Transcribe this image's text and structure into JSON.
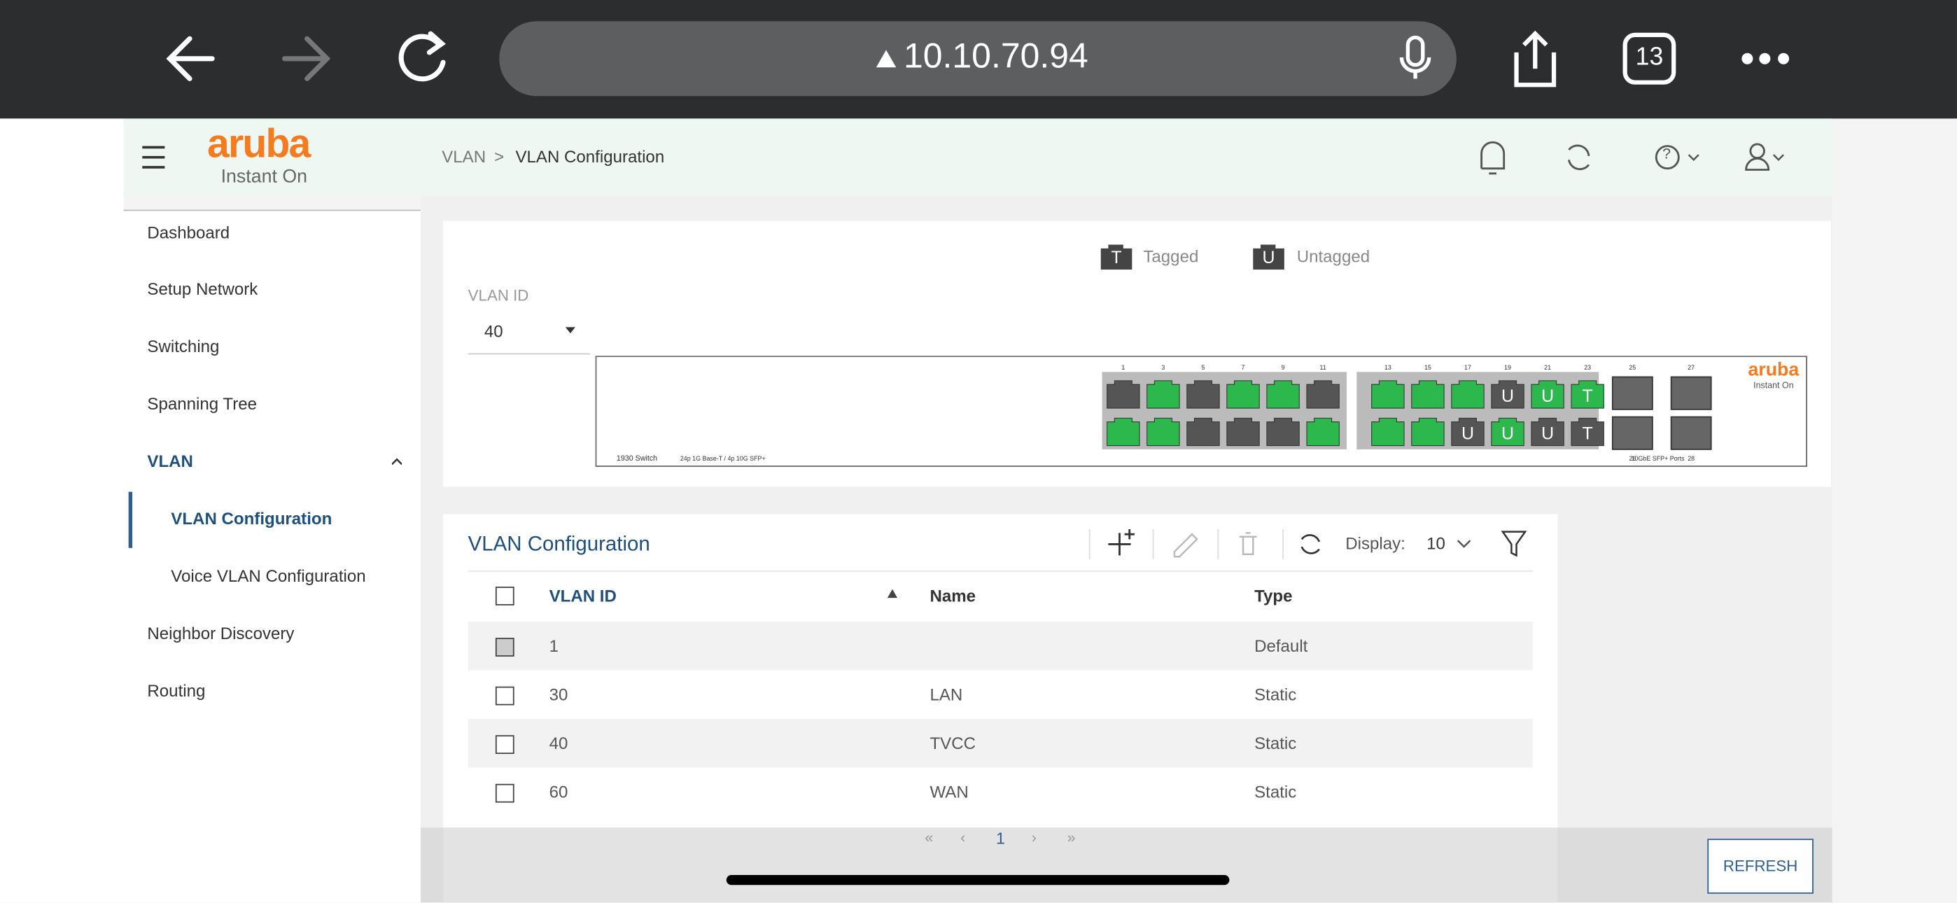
{
  "browser": {
    "url": "10.10.70.94",
    "tab_count": "13"
  },
  "header": {
    "logo": "aruba",
    "logo_sub": "Instant On",
    "breadcrumb": [
      "VLAN",
      ">",
      "VLAN Configuration"
    ]
  },
  "sidebar": {
    "items": [
      {
        "label": "Dashboard",
        "level": 0
      },
      {
        "label": "Setup Network",
        "level": 0
      },
      {
        "label": "Switching",
        "level": 0
      },
      {
        "label": "Spanning Tree",
        "level": 0
      },
      {
        "label": "VLAN",
        "level": 0,
        "expanded": true
      },
      {
        "label": "VLAN Configuration",
        "level": 1,
        "active": true
      },
      {
        "label": "Voice VLAN Configuration",
        "level": 1
      },
      {
        "label": "Neighbor Discovery",
        "level": 0
      },
      {
        "label": "Routing",
        "level": 0
      }
    ]
  },
  "legend": [
    {
      "tag": "T",
      "label": "Tagged"
    },
    {
      "tag": "U",
      "label": "Untagged"
    }
  ],
  "vlan_select": {
    "label": "VLAN ID",
    "value": "40"
  },
  "switch": {
    "model": "1930 Switch",
    "spec": "24p 1G Base-T / 4p 10G SFP+",
    "sfp_caption": "10GbE SFP+ Ports",
    "brand": "aruba",
    "brand_sub": "Instant On",
    "top_labels": [
      "1",
      "3",
      "5",
      "7",
      "9",
      "11",
      "13",
      "15",
      "17",
      "19",
      "21",
      "23"
    ],
    "ports_top": [
      {
        "color": "#555"
      },
      {
        "color": "#2db84d"
      },
      {
        "color": "#555"
      },
      {
        "color": "#2db84d"
      },
      {
        "color": "#2db84d"
      },
      {
        "color": "#555"
      },
      {
        "color": "#2db84d"
      },
      {
        "color": "#2db84d"
      },
      {
        "color": "#2db84d"
      },
      {
        "color": "#555",
        "tag": "U"
      },
      {
        "color": "#2db84d",
        "tag": "U"
      },
      {
        "color": "#2db84d",
        "tag": "T"
      }
    ],
    "ports_bottom": [
      {
        "color": "#2db84d"
      },
      {
        "color": "#2db84d"
      },
      {
        "color": "#555"
      },
      {
        "color": "#555"
      },
      {
        "color": "#555"
      },
      {
        "color": "#2db84d"
      },
      {
        "color": "#2db84d"
      },
      {
        "color": "#2db84d"
      },
      {
        "color": "#555",
        "tag": "U"
      },
      {
        "color": "#2db84d",
        "tag": "U"
      },
      {
        "color": "#555",
        "tag": "U"
      },
      {
        "color": "#555",
        "tag": "T"
      }
    ],
    "sfp_labels": [
      "25",
      "26",
      "27",
      "28"
    ]
  },
  "table": {
    "title": "VLAN Configuration",
    "display_label": "Display:",
    "display_value": "10",
    "columns": [
      "VLAN ID",
      "Name",
      "Type"
    ],
    "rows": [
      [
        "1",
        "",
        "Default"
      ],
      [
        "30",
        "LAN",
        "Static"
      ],
      [
        "40",
        "TVCC",
        "Static"
      ],
      [
        "60",
        "WAN",
        "Static"
      ]
    ],
    "pagination": [
      "«",
      "‹",
      "1",
      "›",
      "»"
    ]
  },
  "refresh_button": "REFRESH"
}
